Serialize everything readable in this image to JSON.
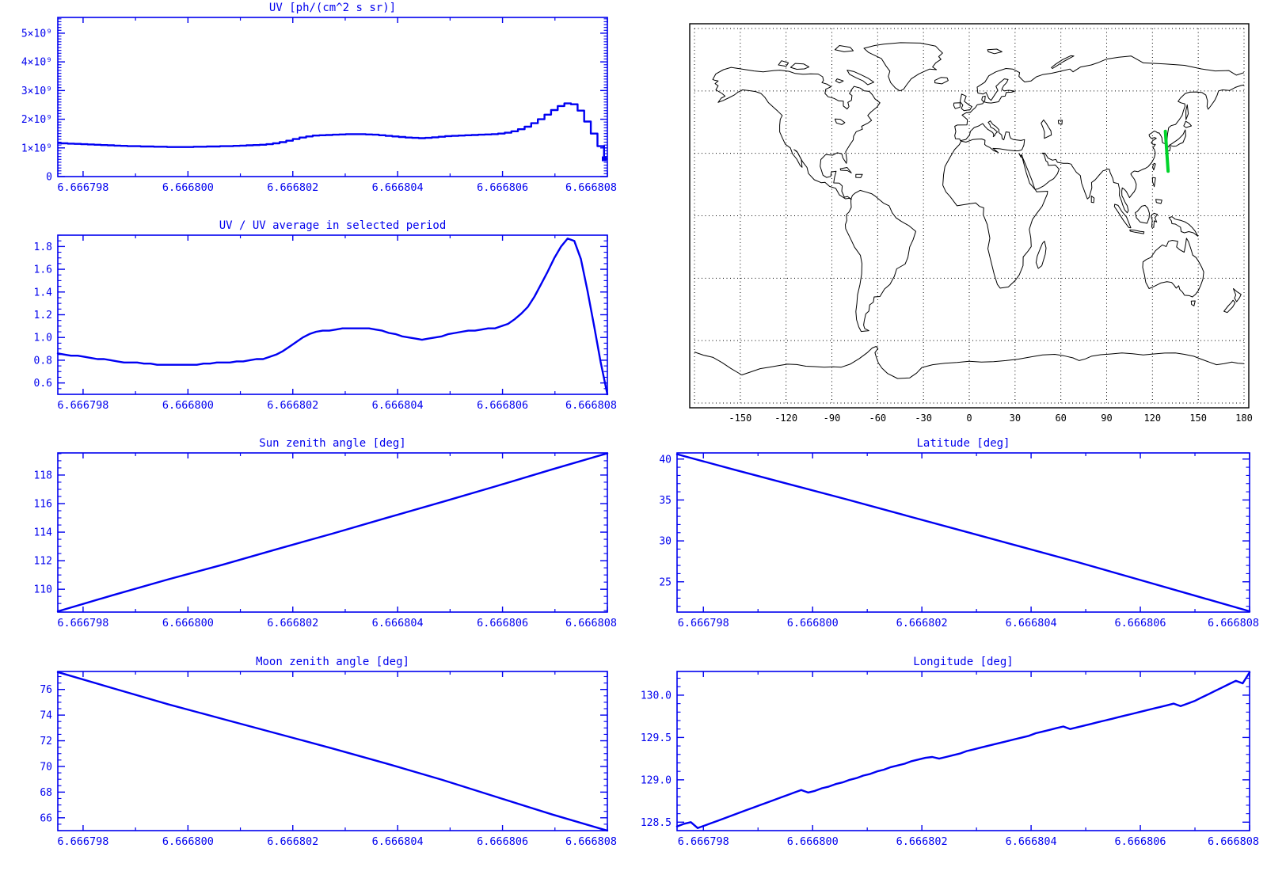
{
  "style": {
    "background": "#ffffff",
    "axis_color": "#0000ee",
    "text_color": "#0000ee",
    "line_color": "#0000f2",
    "map_color": "#000000",
    "track_color": "#00d42a"
  },
  "xaxis": {
    "x_start": 6.6667973,
    "x_end": 6.666808,
    "labels": [
      "6.666798",
      "6.666800",
      "6.666802",
      "6.666804",
      "6.666806",
      "6.666808"
    ],
    "first_frac": 0.046,
    "step_frac": 0.1908
  },
  "plots": [
    {
      "id": "uv",
      "title": "UV [ph/(cm^2 s sr)]",
      "mode": "step",
      "end_marker": true,
      "y": {
        "min": 0,
        "max": 5550000000.0,
        "minor": 100000000.0,
        "majors": [
          0,
          1000000000.0,
          2000000000.0,
          3000000000.0,
          4000000000.0,
          5000000000.0
        ],
        "labels": [
          "0",
          "1×10⁹",
          "2×10⁹",
          "3×10⁹",
          "4×10⁹",
          "5×10⁹"
        ]
      },
      "values": [
        1170000000.0,
        1160000000.0,
        1150000000.0,
        1140000000.0,
        1130000000.0,
        1120000000.0,
        1110000000.0,
        1100000000.0,
        1090000000.0,
        1080000000.0,
        1070000000.0,
        1060000000.0,
        1060000000.0,
        1050000000.0,
        1050000000.0,
        1040000000.0,
        1040000000.0,
        1030000000.0,
        1030000000.0,
        1030000000.0,
        1030000000.0,
        1040000000.0,
        1040000000.0,
        1050000000.0,
        1050000000.0,
        1060000000.0,
        1060000000.0,
        1070000000.0,
        1080000000.0,
        1090000000.0,
        1100000000.0,
        1110000000.0,
        1130000000.0,
        1160000000.0,
        1200000000.0,
        1250000000.0,
        1310000000.0,
        1360000000.0,
        1400000000.0,
        1430000000.0,
        1440000000.0,
        1450000000.0,
        1460000000.0,
        1470000000.0,
        1480000000.0,
        1480000000.0,
        1480000000.0,
        1470000000.0,
        1460000000.0,
        1440000000.0,
        1420000000.0,
        1400000000.0,
        1380000000.0,
        1360000000.0,
        1350000000.0,
        1340000000.0,
        1350000000.0,
        1370000000.0,
        1390000000.0,
        1410000000.0,
        1420000000.0,
        1430000000.0,
        1440000000.0,
        1450000000.0,
        1460000000.0,
        1470000000.0,
        1480000000.0,
        1500000000.0,
        1530000000.0,
        1580000000.0,
        1650000000.0,
        1740000000.0,
        1860000000.0,
        2000000000.0,
        2160000000.0,
        2320000000.0,
        2460000000.0,
        2550000000.0,
        2520000000.0,
        2300000000.0,
        1920000000.0,
        1500000000.0,
        1060000000.0,
        620000000.0
      ]
    },
    {
      "id": "uv_ratio",
      "title": "UV / UV average in selected period",
      "mode": "line",
      "y": {
        "min": 0.5,
        "max": 1.9,
        "minor": 0.05,
        "majors": [
          0.6,
          0.8,
          1.0,
          1.2,
          1.4,
          1.6,
          1.8
        ],
        "labels": [
          "0.6",
          "0.8",
          "1.0",
          "1.2",
          "1.4",
          "1.6",
          "1.8"
        ]
      },
      "values": [
        0.86,
        0.85,
        0.84,
        0.84,
        0.83,
        0.82,
        0.81,
        0.81,
        0.8,
        0.79,
        0.78,
        0.78,
        0.78,
        0.77,
        0.77,
        0.76,
        0.76,
        0.76,
        0.76,
        0.76,
        0.76,
        0.76,
        0.77,
        0.77,
        0.78,
        0.78,
        0.78,
        0.79,
        0.79,
        0.8,
        0.81,
        0.81,
        0.83,
        0.85,
        0.88,
        0.92,
        0.96,
        1.0,
        1.03,
        1.05,
        1.06,
        1.06,
        1.07,
        1.08,
        1.08,
        1.08,
        1.08,
        1.08,
        1.07,
        1.06,
        1.04,
        1.03,
        1.01,
        1.0,
        0.99,
        0.98,
        0.99,
        1.0,
        1.01,
        1.03,
        1.04,
        1.05,
        1.06,
        1.06,
        1.07,
        1.08,
        1.08,
        1.1,
        1.12,
        1.16,
        1.21,
        1.27,
        1.36,
        1.47,
        1.58,
        1.7,
        1.8,
        1.87,
        1.85,
        1.69,
        1.41,
        1.1,
        0.78,
        0.5
      ]
    },
    {
      "id": "sun_zenith",
      "title": "Sun zenith angle [deg]",
      "mode": "line",
      "y": {
        "min": 108.4,
        "max": 119.55,
        "minor": 0.5,
        "majors": [
          110,
          112,
          114,
          116,
          118
        ],
        "labels": [
          "110",
          "112",
          "114",
          "116",
          "118"
        ]
      },
      "values": [
        108.45,
        109.58,
        110.68,
        111.72,
        112.82,
        113.9,
        115.02,
        116.12,
        117.25,
        118.4,
        119.52
      ]
    },
    {
      "id": "moon_zenith",
      "title": "Moon zenith angle [deg]",
      "mode": "line",
      "y": {
        "min": 65.0,
        "max": 77.4,
        "minor": 0.5,
        "majors": [
          66,
          68,
          70,
          72,
          74,
          76
        ],
        "labels": [
          "66",
          "68",
          "70",
          "72",
          "74",
          "76"
        ]
      },
      "values": [
        77.35,
        76.1,
        74.85,
        73.7,
        72.55,
        71.4,
        70.2,
        68.95,
        67.6,
        66.25,
        65.0
      ]
    },
    {
      "id": "latitude",
      "title": "Latitude [deg]",
      "mode": "line",
      "y": {
        "min": 21.3,
        "max": 40.75,
        "minor": 1,
        "majors": [
          25,
          30,
          35,
          40
        ],
        "labels": [
          "25",
          "30",
          "35",
          "40"
        ]
      },
      "values": [
        40.6,
        38.7,
        36.85,
        35.0,
        33.1,
        31.2,
        29.3,
        27.4,
        25.4,
        23.4,
        21.4
      ]
    },
    {
      "id": "longitude",
      "title": "Longitude [deg]",
      "mode": "line",
      "y": {
        "min": 128.4,
        "max": 130.28,
        "minor": 0.1,
        "majors": [
          128.5,
          129.0,
          129.5,
          130.0
        ],
        "labels": [
          "128.5",
          "129.0",
          "129.5",
          "130.0"
        ]
      },
      "values": [
        128.45,
        128.48,
        128.5,
        128.43,
        128.46,
        128.49,
        128.52,
        128.55,
        128.58,
        128.61,
        128.64,
        128.67,
        128.7,
        128.73,
        128.76,
        128.79,
        128.82,
        128.85,
        128.88,
        128.85,
        128.87,
        128.9,
        128.92,
        128.95,
        128.97,
        129.0,
        129.02,
        129.05,
        129.07,
        129.1,
        129.12,
        129.15,
        129.17,
        129.19,
        129.22,
        129.24,
        129.26,
        129.27,
        129.25,
        129.27,
        129.29,
        129.31,
        129.34,
        129.36,
        129.38,
        129.4,
        129.42,
        129.44,
        129.46,
        129.48,
        129.5,
        129.52,
        129.55,
        129.57,
        129.59,
        129.61,
        129.63,
        129.6,
        129.62,
        129.64,
        129.66,
        129.68,
        129.7,
        129.72,
        129.74,
        129.76,
        129.78,
        129.8,
        129.82,
        129.84,
        129.86,
        129.88,
        129.9,
        129.87,
        129.9,
        129.93,
        129.97,
        130.01,
        130.05,
        130.09,
        130.13,
        130.17,
        130.14,
        130.27
      ]
    }
  ],
  "map": {
    "x_tick_labels": [
      "-150",
      "-120",
      "-90",
      "-60",
      "-30",
      "0",
      "30",
      "60",
      "90",
      "120",
      "150",
      "180"
    ],
    "lon_label_values": [
      -150,
      -120,
      -90,
      -60,
      -30,
      0,
      30,
      60,
      90,
      120,
      150,
      180
    ],
    "grid_step": 30,
    "track": {
      "lon": [
        128.45,
        130.27
      ],
      "lat": [
        40.6,
        21.4
      ]
    },
    "coastlines": {
      "closed": [
        "-168,65.5 -166,68.2 -161,70.2 -156,71.3 -148,70.4 -141,69.6 -135,69.2 -128,69.8 -124,70 -118,69.4 -114,68.4 -109,68 -104,68.2 -99,68.1 -96,66.8 -95.5,65 -96.5,64 -93,63.2 -90.5,62 -94,60.8 -94.5,58.8 -92.5,57.2 -88.5,56.4 -85.5,55.2 -82.5,55.1 -82.5,52.8 -80,51.3 -78.8,52.5 -79.5,54.5 -77.2,55.5 -76.8,57.8 -78.5,58.7 -77.5,60.2 -75.5,62.2 -71.5,61.4 -68.8,60 -65.5,59.8 -63.5,58.2 -61.8,56.2 -58.5,54.3 -60.5,52.2 -64.5,49.8 -66.5,48.2 -64,45.8 -66.5,44.5 -70.5,43 -70,41.6 -74,40.4 -75.8,38.2 -76,36.5 -78.5,33.8 -81,30.8 -80.2,26.8 -80.5,25.2 -82.8,27.8 -83.5,29.8 -86.5,30.3 -89.5,29.1 -94,29.4 -97.2,27 -97.7,23.8 -95.8,19.5 -93.5,18.4 -90.8,18.9 -90.3,21.1 -87.2,21.4 -88.3,18.3 -88.8,15.8 -85.2,15.7 -83.2,14.3 -83.5,11.8 -81.8,8.9 -79.8,9.3 -77.2,7.9 -78.5,8.4 -81.2,8.2 -85,10 -87.5,13.2 -91.5,14.1 -94.5,16.1 -97,15.9 -101.5,17.3 -105.3,20.3 -106.3,23.2 -109.2,26 -112.5,30.5 -114.8,31.8 -113,31 -110,27 -109.5,23.3 -110.8,24.2 -113,27.2 -115.8,29.8 -117.2,32.6 -120.5,34.4 -122.3,37.2 -124.2,40.3 -124.2,43.5 -123.8,46.3 -122.5,48.2 -125.5,50.3 -128,52 -131.5,54.3 -134,57 -136.5,58.8 -140,59.7 -145,60.2 -148.5,60.5 -151.5,59.4 -154,58 -158,56.5 -161.5,55.3 -164.5,54.5 -162.5,56.5 -160,57.5 -162,58.8 -166,60.5 -164.5,62.5 -166.5,63.5 -164.5,64.8 -167,65.2",
        "-45.5,60 -48.5,61.5 -51.5,64 -53,67 -52,69.5 -54.5,72 -57.5,75.5 -66,78.5 -69,80.5 -62,81.8 -56,82.5 -45,83.2 -32,83 -22,81.5 -20,80 -17.5,78.2 -20,76.5 -18.5,75.2 -22,73.5 -24,71.5 -21.5,70.2 -26,70.5 -33,68.2 -38,65.8 -41,63 -43,60.8",
        "-80,70 -75.5,69.3 -71,67.8 -66,66 -62.5,64.2 -66.5,63 -69.5,64.8 -74,66.3 -78.5,68",
        "-117,71.3 -113,70.4 -108,70.6 -105,71.5 -108.5,73 -114,73.2",
        "-88,79.8 -82,78.8 -76,79.3 -78,81 -85,81.8",
        "-125,72.5 -120,71.8 -118.5,73.5 -123,74.5",
        "-86.5,65.8 -82.5,64.8 -85,63.8 -87.5,64.8",
        "-22.5,65.1 -18.5,66.5 -14.5,66.3 -13.8,65 -18,63.4 -22.5,63.9",
        "-88,46.5 -84.5,46.4 -81.5,44.8 -83.5,43.8 -87,44.6",
        "-5,58.5 -2,57.5 -3.2,55 0.3,53 1.7,52.5 0.5,51 -3.5,50.5 -5.2,51.6 -4.2,53.2 -6,54.8",
        "-10,54.2 -6,54.3 -6,52.2 -9.2,51.5 -10.2,53",
        "-77.5,8 -76.5,9.8 -74.8,10.9 -71.5,12.2 -68,11.5 -64,10.6 -61.5,9.4 -60,8.4 -56,6 -52.5,4.8 -50.5,1.5 -48,-1 -44.5,-2.7 -39.5,-4.8 -35,-7.5 -36.8,-11.5 -39,-15 -40.2,-20 -42,-23.2 -47.5,-25.5 -49,-29 -52,-33 -55.5,-35.2 -58.5,-38.8 -62.3,-39 -62.8,-41.5 -65.2,-42.8 -65.8,-45.8 -67.8,-47.2 -68.8,-50.5 -69.2,-52.5 -68.5,-54.2 -65.8,-55.2 -70.8,-55.6 -72.3,-53.5 -73.8,-50 -74.3,-46 -73.6,-42 -73.2,-38 -71.6,-33 -70.5,-28 -70.3,-23 -71.3,-19 -75.2,-15 -77,-12.2 -81,-6.2 -81.2,-4.3 -80.2,-2.2 -80.5,0.5 -78.8,1.8 -77.3,4 -77.5,6.5",
        "-84.5,22.6 -80,23.2 -77.2,20.6 -79.8,21.7 -84.2,21.9",
        "-74.3,19.9 -70,19.9 -71.1,18.3 -74.3,18.4",
        "49.3,-12.2 50.3,-15.5 49.8,-18.5 47.5,-24 45.2,-25.3 43.8,-22.5 44.5,-19.5 46.5,-15.8 48,-13.2",
        "80,9.5 81.8,8.5 81.5,6.3 80,6.5",
        "49.2,37.2 53.8,38.8 53.5,40.8 52.6,41.8 50.5,44.3 48.7,46.1 47.1,44.5 48.4,42.2 49.3,40.3",
        "58.3,45.8 60.9,45.9 60.7,44 58.5,44.3",
        "53.8,71.2 56.5,72.8 61,75 66.5,76.9 68.5,76.8 66,75.8 61.5,74 57.2,72 54.5,70.8",
        "12,79.8 18,80.1 21.5,78.8 16.5,77.9 12.5,78.8",
        "141.5,41.3 140,39 137,36.8 132.5,34.5 131,33.9 133.5,33.4 135.5,33.5 138,34.6 140,35.2 141.8,38.4",
        "130.2,33.5 129.8,31.2 131.3,31.2 131.8,33",
        "140.5,43.2 142,42.4 145.5,43.2 144,44.5 141.8,45.4",
        "142,46.2 143.5,49 142.8,53.3 141.9,50.5",
        "121,25.2 122,24.9 120.8,22 120.1,23.5",
        "120,18.4 122,18.2 121.2,14 120.1,16.3",
        "122.2,7.9 126.2,7.5 125.6,5.9 122.6,6.4",
        "108.8,1.5 109.5,-1 112,-3 114.5,-3.4 116.5,-3.6 117.8,-1 118,1.2 117,3.6 115.2,5 113,4.6 110,2.1",
        "95.3,5.5 97.5,5 100,2 103,-0.6 105.8,-5.8 104.4,-5.6 101,-2.2 97.5,1.8 95.1,4.4",
        "105.2,-6.8 108,-6.9 112,-7.5 114.5,-7.7 114.2,-8.6 108.5,-7.9 105.4,-7.4",
        "119.8,0.6 121.2,1.2 123.3,0.6 121.6,-0.9 122.8,-3 121.2,-2.4 120.8,-5.6 119.5,-5.5 119.9,-2 119.2,-0.5",
        "130.8,-0.9 132.8,-0.4 134.8,-1.6 136.5,-1.9 138.5,-2.2 141.5,-3 144,-4.2 146.2,-5.8 147.8,-7.2 149.8,-9.8 146.8,-8.2 143.8,-7.6 141,-8.2 138.8,-7.6 138.4,-5.5 135,-4 132.8,-3.8 132.4,-2.4",
        "142.3,-10.8 141.8,-13.5 140.8,-17.5 137.8,-16.3 135.8,-15 136.6,-12.3 133,-11.8 130.5,-12.3 129,-14.8 126.5,-14 122,-16.8 119,-20 116,-21 113.8,-22.2 113.6,-24.8 114.8,-28.5 115.6,-32 117.8,-35 121.5,-33.8 125.5,-32.3 129.5,-31.7 132.5,-32 134,-33.2 135.6,-34.8 137.2,-33.6 137.9,-35.4 139.8,-36.8 141,-38.2 144.2,-38.4 146.2,-39 148.2,-37.8 150,-36 151.6,-33.4 153.1,-30.4 153.6,-27 152.2,-24.6 150.6,-22.4 148.6,-20.1 146.4,-18.9 145.4,-16.4 144.4,-14.2 143.6,-12.4",
        "145.4,-41 148,-40.9 147.2,-43.3 145.6,-42.6",
        "173,-35 175.6,-36.6 178.1,-37.8 177.1,-39.3 175.2,-41.3 173.8,-39.6 174.6,-38.1",
        "172.8,-40.6 174.2,-41.8 172.6,-43.8 169,-46.5 166.8,-45.9 169.8,-43.2 171.6,-41.8"
      ],
      "open": [
        "180,68.8 175,67.6 170,69.8 161,69.6 152,70.6 141,72.3 128,73 114,73.5 106,76.8 98,76.2 90,75.3 84,73.5 80,72.5 73,71.5 68,69.2 66,70.5 60,69.5 54,68.5 48,67.8 44,66.8 40.5,64.8 36.3,64.3 34.5,65.5 32.5,67 33,68.8 28.5,70.5 24,70.8 17.5,69.2 12.8,67.3 10.2,64.2 5.2,61.8 5.6,59 9,58.5 11,59.3 12.8,56.4 14.3,55.5 17.2,58.7 18.7,60.3 17.5,62.2 19.8,63.8 23,65.8 25.4,65.5 24.5,64 22.5,62.5 21.3,60.8 22.8,60 26,60.3 29.8,59.9 27.8,59.4 24.3,59.3 23.5,57.5 21.2,57.3 19.2,54.8 14.3,54.2 12,54.3 9.4,54.8 8.2,55.7 8.6,57.2 10.5,57.5 10.2,55.5 8.8,53.9 5.2,53.3 4,52 2.6,51.1 0.4,49.5 -1.8,49.6 -4.7,48.4 -1.2,46.2 -1.5,43.7 -8,43.6 -9.5,43 -8.8,40.5 -9.5,38.5 -9,37 -6.3,36.9 -5.8,36.1 -2.2,36.7 0.2,38.8 0.8,40.6 3.2,42.4 6.2,43.2 8.8,44.3 10.3,42.9 12,41.6 13.8,40.8 15.4,40 16.1,38.9 15.7,38 16.6,38.5 17.2,39.5 18.4,40.3 15.9,41.9 14,42.6 13.5,43.8 12.4,44.9 13.8,45.6 15.3,44 17.5,42.9 19.4,41.4 19.4,40 21.2,38.8 21.6,37 22.6,36.5 23.2,38 24,40.3 26.2,40.1 26.2,39 27.2,37.2 29,36.6 31,36.4 33.8,36.2 36.2,36.6 35.8,34 34.5,31.7 32.2,31.2 29.8,31.2 25.2,31.6 19.8,32.2 15.5,32.4 19,30.4 15.8,31.4 13.5,32.8 11.2,33.6 10.1,34.3 10.3,36.3 8.2,36.9 5.2,36.8 2.2,36.6 -2.2,35.4 -5.3,35.9 -6.5,34.2 -9.6,31.8 -12.5,28.2 -15.9,23.7 -16.8,19.8 -17.3,14.7 -15.3,11.5 -12.5,9.2 -8,4.8 -4,5.3 0.5,5.8 4.2,6.2 6.8,4.5 9.5,3.8 9.2,0.5 11.8,-4.2 13.5,-10.8 12.2,-15.8 14.3,-22.2 16.4,-28.3 18.4,-33 20.3,-34.8 25.6,-34.2 30.2,-31 32.8,-28.4 35.2,-24 35.3,-19.8 38.3,-17.2 40.6,-14.8 40.3,-10.6 39.3,-6.5 41.4,-1.8 44.3,1.2 47.8,4.6 51.1,10.4 51.3,11.8 44.2,11.5 43.2,12.6 39.6,15.6 37.3,20.8 34.8,27.7 32.6,29.9 33.8,28.2 34.4,29.5 35,27.9 36.8,24.8 39,20.8 41.2,16.8 43,12.7 45,12.9 48.8,14.4 52.8,16.8 55.3,17.8 57.8,20.2 58.8,22.4 56.4,24.4 54.2,24.3 51.8,24.2 51.3,25.8 50.2,26.4 48.9,29.6 47.7,30.1 49.6,30.1 51.6,27.7 54.5,26.7 56.7,27.1 57.8,25.7 61.5,25.2 64.8,25.2 66.8,24.8 67.5,23.8 68.8,22.4 70.2,20.9 72.8,19.3 73.6,15.6 75.8,11.2 77.4,8.1 78.6,8.9 80.3,13.4 80.1,16 82.4,17.2 85.2,19.6 87.6,21.6 89,21.9 90.5,22.5 91.8,22.3 92.3,20.8 94,18 94.6,16 96.3,15.7 97.6,15.5 98.5,12.5 98.3,9.8 99.8,7 100.5,5.3 101.8,2.9 103.5,1.4 104.2,2.5 103.5,4.8 102.2,6.3 100.9,8.4 100,9.6 99.9,11.8 100.2,13.4 101.8,12.6 102.9,11.6 103.8,10.4 105,8.7 106.7,10.4 108.1,11.6 109.2,13.3 109.4,15.2 108.2,17.5 106.5,19.2 105.8,20.1 106.8,20.9 108.1,21.5 109.8,21.3 110.5,21.2 113.6,22.3 115.4,22.8 117.2,23.6 119.6,25.7 121.2,27.9 121.9,30.1 121.2,32 120.3,32.6 121.9,34.3 120.2,34.4 119.2,35.1 120.3,36.2 122.5,37.2 121.5,37.6 119.2,37.2 118,38.2 117.8,39 119.5,39.8 121.2,40.7 122.3,40.4 123.5,39.8 124.3,39.9 125.4,38.7 126.2,37.5 126.3,36.3 126.6,35.1 127.9,34.7 129.2,35.1 129.6,36.5 129.9,39.2 130.6,42.3 132.2,43.3 135.2,43.9 137.2,45.8 139.5,48.3 140.3,50.5 141.3,52.5 141.2,53.8 138.6,54.3 136.8,55 138.3,56.5 141.5,58.8 144.5,59.4 148.5,59.5 152.5,59.2 155,58 156.1,55.2 155.8,52.5 156.5,51.2 158.3,52.9 160.8,55.5 162.3,57.8 163.3,60 166,60.5 170.5,60.2 174.3,61.7 178,62.6 180,62.9",
        "-180,-65.5 -174,-67 -168,-68 -162,-70.5 -156,-73.5 -149,-76.5 -143,-75 -137,-73.5 -131,-72.8 -125,-72 -119,-71.3 -113,-71.5 -107,-72.3 -101,-72.5 -95,-72.8 -89,-72.6 -84,-72.8 -78,-71.3 -72,-68.6 -67,-65.9 -63.5,-63.5 -61,-62.8 -59.8,-63.8 -61.8,-65.8 -60.8,-68.2 -59.5,-70.8 -57.2,-73.2 -53.5,-75.8 -47,-78.2 -39,-77.9 -34.5,-75.6 -31,-72.9 -24,-71.6 -16,-70.9 -8,-70.5 0,-69.9 8,-70.3 16,-70.1 24,-69.6 32,-68.9 40,-67.9 48,-66.9 56,-66.6 62,-67.3 68,-68.3 72,-69.6 76,-68.8 80,-67.5 86,-66.8 93,-66.4 100,-65.9 107,-66.3 114,-66.9 121,-66.4 128,-66 135,-65.9 141,-66.6 147,-67.5 152,-68.9 157,-70.3 162,-71.6 167,-71.1 172,-70.3 176,-70.9 180,-71.1"
      ]
    }
  }
}
